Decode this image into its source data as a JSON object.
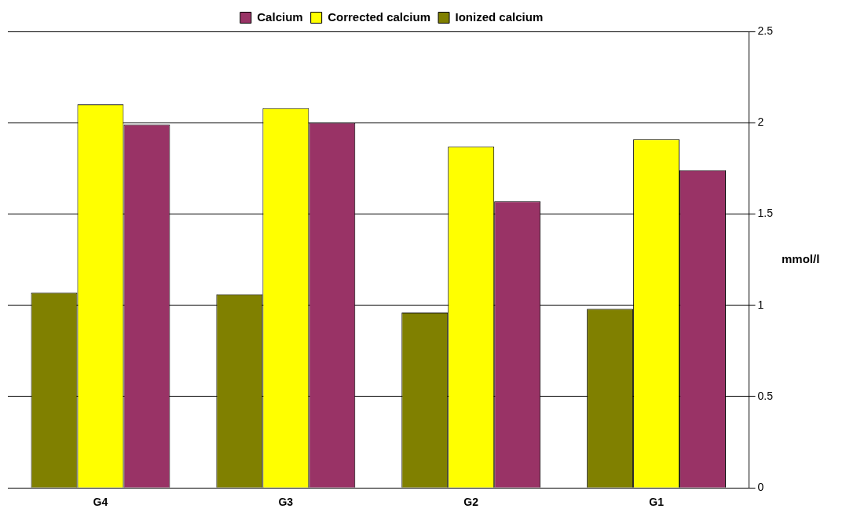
{
  "chart_data": {
    "type": "bar",
    "ylabel": "mmol/l",
    "categories": [
      "G4",
      "G3",
      "G2",
      "G1"
    ],
    "series": [
      {
        "name": "Ionized calcium",
        "color": "#808000",
        "values": [
          1.07,
          1.06,
          0.96,
          0.98
        ]
      },
      {
        "name": "Corrected calcium",
        "color": "#ffff00",
        "values": [
          2.1,
          2.08,
          1.87,
          1.91
        ]
      },
      {
        "name": "Calcium",
        "color": "#993366",
        "values": [
          1.99,
          2.0,
          1.57,
          1.74
        ]
      }
    ],
    "ylim": [
      0,
      2.5
    ],
    "yticks": [
      0,
      0.5,
      1,
      1.5,
      2,
      2.5
    ],
    "grid": "y",
    "legend": "top"
  }
}
